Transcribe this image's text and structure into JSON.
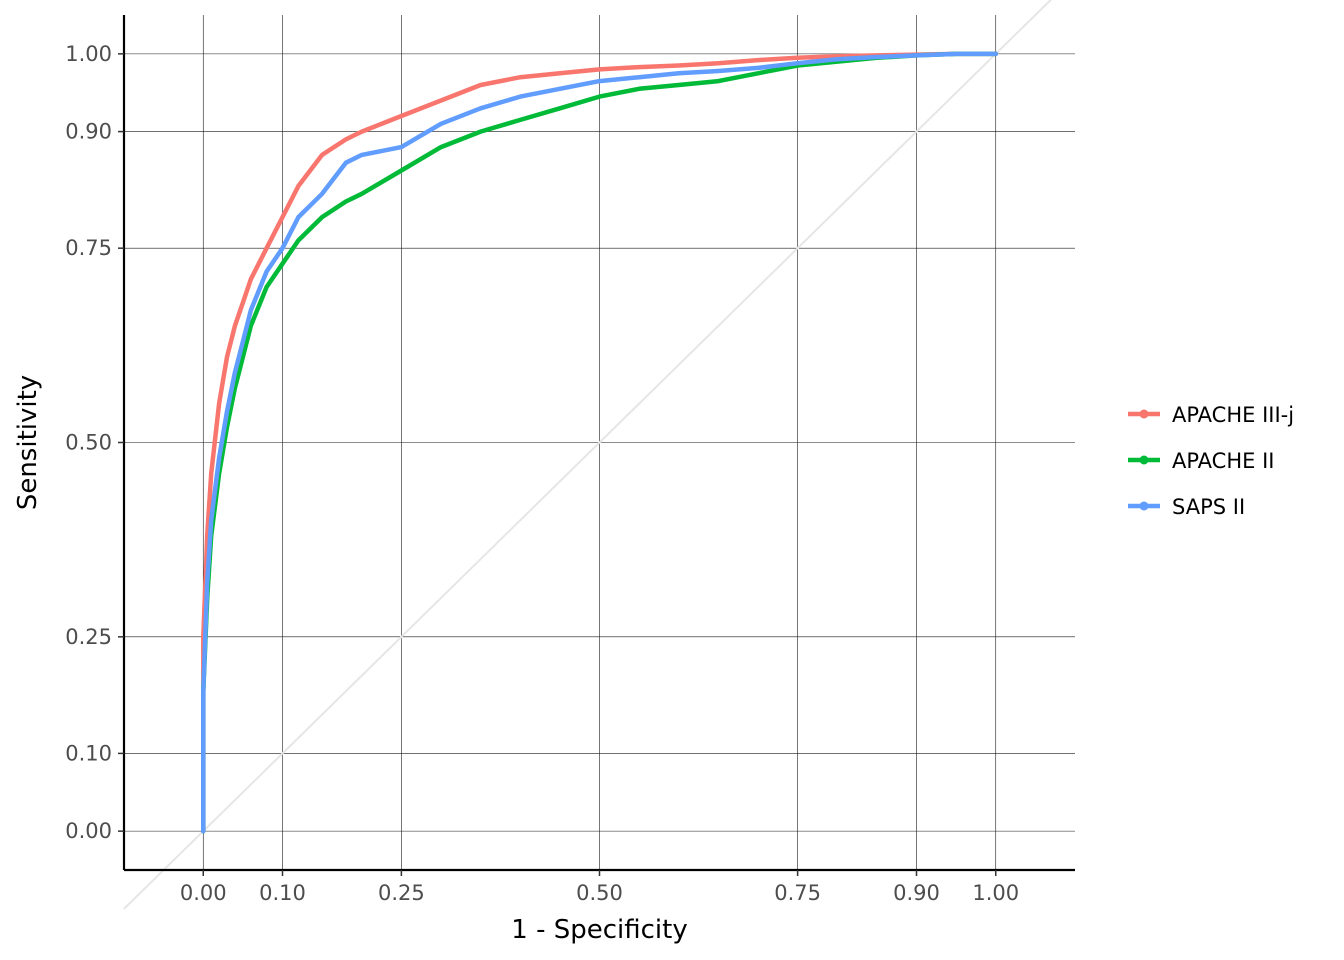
{
  "chart_data": {
    "type": "line",
    "title": "",
    "xlabel": "1 - Specificity",
    "ylabel": "Sensitivity",
    "xlim": [
      -0.1,
      1.1
    ],
    "ylim": [
      -0.05,
      1.05
    ],
    "x_ticks": [
      0.0,
      0.1,
      0.25,
      0.5,
      0.75,
      0.9,
      1.0
    ],
    "x_tick_labels": [
      "0.00",
      "0.10",
      "0.25",
      "0.50",
      "0.75",
      "0.90",
      "1.00"
    ],
    "y_ticks": [
      0.0,
      0.1,
      0.25,
      0.5,
      0.75,
      0.9,
      1.0
    ],
    "y_tick_labels": [
      "0.00",
      "0.10",
      "0.25",
      "0.50",
      "0.75",
      "0.90",
      "1.00"
    ],
    "grid": true,
    "legend_position": "right",
    "reference_line": {
      "from": [
        0,
        0
      ],
      "to": [
        1,
        1
      ],
      "color": "#e6e6e6"
    },
    "series": [
      {
        "name": "APACHE III-j",
        "color": "#F8766D",
        "x": [
          0.0,
          0.0,
          0.005,
          0.01,
          0.02,
          0.03,
          0.04,
          0.05,
          0.06,
          0.08,
          0.1,
          0.12,
          0.15,
          0.18,
          0.2,
          0.25,
          0.3,
          0.35,
          0.4,
          0.45,
          0.5,
          0.55,
          0.6,
          0.65,
          0.7,
          0.75,
          0.8,
          0.85,
          0.9,
          0.95,
          1.0
        ],
        "y": [
          0.0,
          0.25,
          0.38,
          0.46,
          0.55,
          0.61,
          0.65,
          0.68,
          0.71,
          0.75,
          0.79,
          0.83,
          0.87,
          0.89,
          0.9,
          0.92,
          0.94,
          0.96,
          0.97,
          0.975,
          0.98,
          0.983,
          0.985,
          0.988,
          0.992,
          0.995,
          0.997,
          0.998,
          0.999,
          1.0,
          1.0
        ]
      },
      {
        "name": "APACHE II",
        "color": "#00BA38",
        "x": [
          0.0,
          0.0,
          0.005,
          0.01,
          0.02,
          0.03,
          0.04,
          0.05,
          0.06,
          0.08,
          0.1,
          0.12,
          0.15,
          0.18,
          0.2,
          0.25,
          0.3,
          0.35,
          0.4,
          0.45,
          0.5,
          0.55,
          0.6,
          0.65,
          0.7,
          0.75,
          0.8,
          0.85,
          0.9,
          0.95,
          1.0
        ],
        "y": [
          0.0,
          0.18,
          0.3,
          0.38,
          0.46,
          0.52,
          0.57,
          0.61,
          0.65,
          0.7,
          0.73,
          0.76,
          0.79,
          0.81,
          0.82,
          0.85,
          0.88,
          0.9,
          0.915,
          0.93,
          0.945,
          0.955,
          0.96,
          0.965,
          0.975,
          0.985,
          0.99,
          0.995,
          0.998,
          1.0,
          1.0
        ]
      },
      {
        "name": "SAPS II",
        "color": "#619CFF",
        "x": [
          0.0,
          0.0,
          0.005,
          0.01,
          0.02,
          0.03,
          0.04,
          0.05,
          0.06,
          0.08,
          0.1,
          0.12,
          0.15,
          0.18,
          0.2,
          0.25,
          0.3,
          0.35,
          0.4,
          0.45,
          0.5,
          0.55,
          0.6,
          0.65,
          0.7,
          0.75,
          0.8,
          0.85,
          0.9,
          0.95,
          1.0
        ],
        "y": [
          0.0,
          0.18,
          0.32,
          0.4,
          0.48,
          0.54,
          0.59,
          0.63,
          0.67,
          0.72,
          0.75,
          0.79,
          0.82,
          0.86,
          0.87,
          0.88,
          0.91,
          0.93,
          0.945,
          0.955,
          0.965,
          0.97,
          0.975,
          0.978,
          0.982,
          0.988,
          0.993,
          0.996,
          0.998,
          1.0,
          1.0
        ]
      }
    ]
  }
}
